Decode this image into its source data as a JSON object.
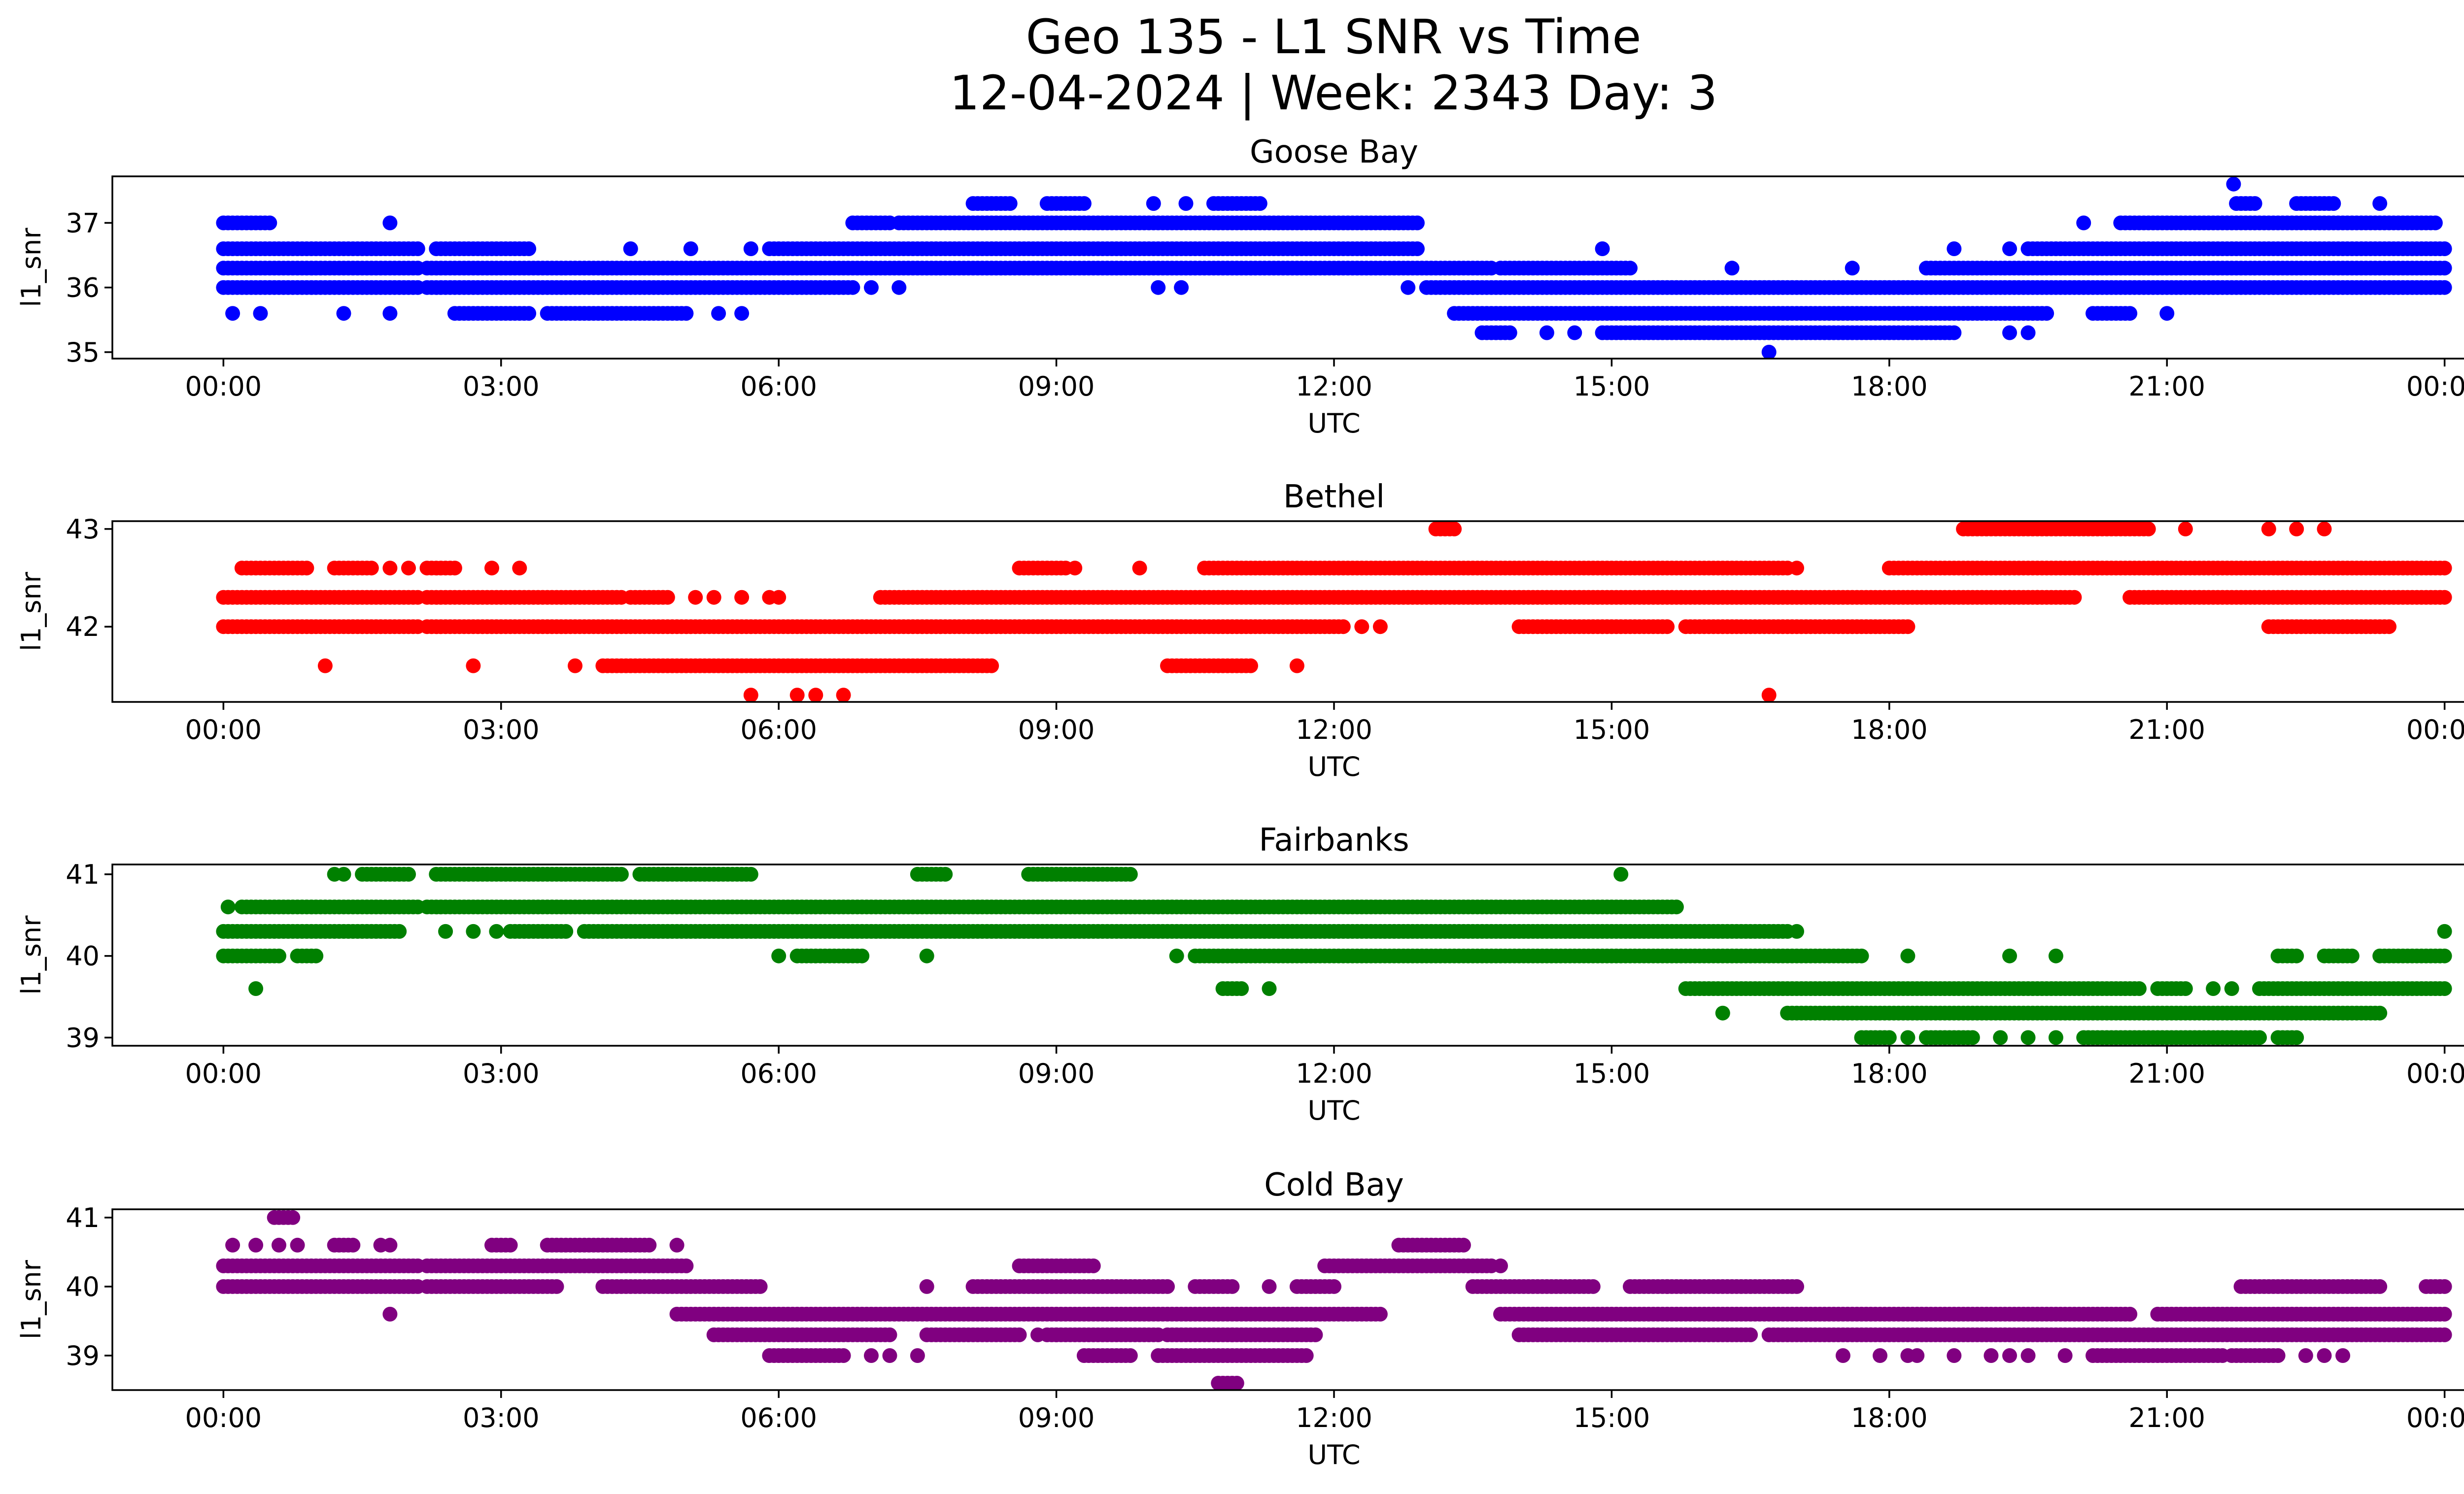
{
  "title_line1": "Geo 135 - L1 SNR vs Time",
  "title_line2": "12-04-2024 | Week: 2343 Day: 3",
  "chart_data": [
    {
      "type": "scatter",
      "title": "Goose Bay",
      "color": "#0000ff",
      "xlabel": "UTC",
      "ylabel": "l1_snr",
      "xlim_hours": [
        -1.2,
        25.2
      ],
      "ylim": [
        34.9,
        37.72
      ],
      "xticks": [
        "00:00",
        "03:00",
        "06:00",
        "09:00",
        "12:00",
        "15:00",
        "18:00",
        "21:00",
        "00:00"
      ],
      "yticks": [
        35,
        36,
        37
      ],
      "levels": [
        {
          "y": 37.6,
          "ranges": [],
          "points": [
            21.72
          ]
        },
        {
          "y": 37.3,
          "ranges": [
            [
              8.1,
              8.5
            ],
            [
              8.9,
              9.3
            ],
            [
              10.7,
              11.2
            ],
            [
              21.75,
              21.95
            ],
            [
              22.4,
              22.8
            ]
          ],
          "points": [
            10.05,
            10.4,
            23.3
          ]
        },
        {
          "y": 37.0,
          "ranges": [
            [
              0.0,
              0.5
            ],
            [
              6.8,
              7.2
            ],
            [
              7.3,
              12.9
            ],
            [
              20.5,
              23.9
            ]
          ],
          "points": [
            1.8,
            20.1
          ]
        },
        {
          "y": 36.6,
          "ranges": [
            [
              0.0,
              2.1
            ],
            [
              2.3,
              3.3
            ],
            [
              5.9,
              12.9
            ]
          ],
          "points": [
            4.4,
            5.05,
            5.7,
            14.9,
            18.7,
            19.3
          ]
        },
        {
          "y": 36.6,
          "ranges": [
            [
              19.5,
              24.0
            ]
          ],
          "points": []
        },
        {
          "y": 36.3,
          "ranges": [
            [
              0.0,
              2.1
            ],
            [
              2.2,
              13.7
            ],
            [
              13.8,
              15.2
            ]
          ],
          "points": [
            16.3,
            17.6
          ]
        },
        {
          "y": 36.3,
          "ranges": [
            [
              18.4,
              24.0
            ]
          ],
          "points": []
        },
        {
          "y": 36.0,
          "ranges": [
            [
              0.0,
              2.1
            ],
            [
              2.2,
              6.8
            ],
            [
              13.0,
              24.0
            ]
          ],
          "points": [
            7.0,
            7.3,
            10.1,
            10.35,
            12.8
          ]
        },
        {
          "y": 35.6,
          "ranges": [
            [
              2.5,
              3.3
            ],
            [
              3.5,
              5.0
            ],
            [
              13.3,
              19.7
            ],
            [
              20.2,
              20.6
            ]
          ],
          "points": [
            0.1,
            0.4,
            1.3,
            1.8,
            5.35,
            5.6,
            21.0
          ]
        },
        {
          "y": 35.3,
          "ranges": [
            [
              13.6,
              13.9
            ],
            [
              14.9,
              18.7
            ]
          ],
          "points": [
            14.3,
            14.6,
            19.3,
            19.5
          ]
        },
        {
          "y": 35.0,
          "ranges": [],
          "points": [
            16.7
          ]
        }
      ]
    },
    {
      "type": "scatter",
      "title": "Bethel",
      "color": "#ff0000",
      "xlabel": "UTC",
      "ylabel": "l1_snr",
      "xlim_hours": [
        -1.2,
        25.2
      ],
      "ylim": [
        41.23,
        43.08
      ],
      "xticks": [
        "00:00",
        "03:00",
        "06:00",
        "09:00",
        "12:00",
        "15:00",
        "18:00",
        "21:00",
        "00:00"
      ],
      "yticks": [
        42,
        43
      ],
      "levels": [
        {
          "y": 43.0,
          "ranges": [
            [
              13.1,
              13.3
            ],
            [
              18.8,
              20.8
            ]
          ],
          "points": [
            21.2,
            22.1,
            22.4,
            22.7
          ]
        },
        {
          "y": 42.6,
          "ranges": [
            [
              0.2,
              0.9
            ],
            [
              1.2,
              1.6
            ],
            [
              2.2,
              2.5
            ],
            [
              8.6,
              9.1
            ],
            [
              10.6,
              16.9
            ],
            [
              18.0,
              24.0
            ]
          ],
          "points": [
            1.8,
            2.0,
            2.9,
            3.2,
            9.2,
            9.9,
            17.0
          ]
        },
        {
          "y": 42.3,
          "ranges": [
            [
              0.0,
              2.1
            ],
            [
              2.2,
              4.3
            ],
            [
              4.4,
              4.8
            ],
            [
              7.1,
              20.0
            ],
            [
              20.6,
              24.0
            ]
          ],
          "points": [
            5.1,
            5.3,
            5.6,
            5.9,
            6.0,
            19.3,
            19.6
          ]
        },
        {
          "y": 42.0,
          "ranges": [
            [
              0.0,
              2.1
            ],
            [
              2.2,
              12.1
            ],
            [
              14.0,
              15.6
            ],
            [
              15.8,
              18.2
            ],
            [
              22.1,
              23.4
            ]
          ],
          "points": [
            12.3,
            12.5
          ]
        },
        {
          "y": 41.6,
          "ranges": [
            [
              4.1,
              8.3
            ],
            [
              10.2,
              11.1
            ]
          ],
          "points": [
            1.1,
            2.7,
            3.8,
            11.6
          ]
        },
        {
          "y": 41.3,
          "ranges": [],
          "points": [
            5.7,
            6.2,
            6.4,
            6.7,
            16.7
          ]
        }
      ]
    },
    {
      "type": "scatter",
      "title": "Fairbanks",
      "color": "#008000",
      "xlabel": "UTC",
      "ylabel": "l1_snr",
      "xlim_hours": [
        -1.2,
        25.2
      ],
      "ylim": [
        38.9,
        41.12
      ],
      "xticks": [
        "00:00",
        "03:00",
        "06:00",
        "09:00",
        "12:00",
        "15:00",
        "18:00",
        "21:00",
        "00:00"
      ],
      "yticks": [
        39,
        40,
        41
      ],
      "levels": [
        {
          "y": 41.0,
          "ranges": [
            [
              1.5,
              2.0
            ],
            [
              2.3,
              4.3
            ],
            [
              4.5,
              5.7
            ],
            [
              7.5,
              7.8
            ],
            [
              8.7,
              9.8
            ]
          ],
          "points": [
            1.2,
            1.3,
            15.1
          ]
        },
        {
          "y": 40.6,
          "ranges": [
            [
              0.2,
              2.1
            ],
            [
              2.2,
              15.7
            ]
          ],
          "points": [
            0.05
          ]
        },
        {
          "y": 40.3,
          "ranges": [
            [
              0.0,
              1.9
            ],
            [
              3.1,
              3.7
            ],
            [
              3.9,
              16.9
            ]
          ],
          "points": [
            2.4,
            2.7,
            2.95,
            17.0,
            24.0
          ]
        },
        {
          "y": 40.0,
          "ranges": [
            [
              0.0,
              0.6
            ],
            [
              0.8,
              1.0
            ],
            [
              6.2,
              6.9
            ],
            [
              10.5,
              17.7
            ],
            [
              22.2,
              22.4
            ],
            [
              22.7,
              23.0
            ],
            [
              23.3,
              24.0
            ]
          ],
          "points": [
            6.0,
            7.6,
            10.3,
            18.2,
            19.3,
            19.8
          ]
        },
        {
          "y": 39.6,
          "ranges": [
            [
              10.8,
              11.0
            ],
            [
              15.8,
              20.7
            ],
            [
              20.9,
              21.2
            ],
            [
              22.0,
              24.0
            ]
          ],
          "points": [
            0.35,
            11.3,
            21.5,
            21.7
          ]
        },
        {
          "y": 39.3,
          "ranges": [
            [
              16.9,
              23.3
            ]
          ],
          "points": [
            16.2
          ]
        },
        {
          "y": 39.0,
          "ranges": [
            [
              17.7,
              18.0
            ],
            [
              18.4,
              18.9
            ],
            [
              20.1,
              22.0
            ],
            [
              22.2,
              22.4
            ]
          ],
          "points": [
            18.2,
            19.2,
            19.5,
            19.8
          ]
        }
      ]
    },
    {
      "type": "scatter",
      "title": "Cold Bay",
      "color": "#800080",
      "xlabel": "UTC",
      "ylabel": "l1_snr",
      "xlim_hours": [
        -1.2,
        25.2
      ],
      "ylim": [
        38.5,
        41.12
      ],
      "xticks": [
        "00:00",
        "03:00",
        "06:00",
        "09:00",
        "12:00",
        "15:00",
        "18:00",
        "21:00",
        "00:00"
      ],
      "yticks": [
        39,
        40,
        41
      ],
      "levels": [
        {
          "y": 41.0,
          "ranges": [
            [
              0.55,
              0.75
            ]
          ],
          "points": []
        },
        {
          "y": 40.6,
          "ranges": [
            [
              1.2,
              1.4
            ],
            [
              2.9,
              3.1
            ],
            [
              3.5,
              4.6
            ],
            [
              12.7,
              13.4
            ]
          ],
          "points": [
            0.1,
            0.35,
            0.6,
            0.8,
            1.7,
            1.8,
            4.9
          ]
        },
        {
          "y": 40.3,
          "ranges": [
            [
              0.0,
              2.1
            ],
            [
              2.2,
              5.0
            ],
            [
              8.6,
              9.4
            ],
            [
              11.9,
              13.7
            ]
          ],
          "points": [
            13.8
          ]
        },
        {
          "y": 40.0,
          "ranges": [
            [
              0.0,
              2.1
            ],
            [
              2.2,
              3.6
            ],
            [
              4.1,
              5.8
            ],
            [
              8.1,
              10.2
            ],
            [
              10.5,
              10.9
            ],
            [
              11.6,
              12.0
            ],
            [
              13.5,
              14.8
            ],
            [
              15.2,
              17.0
            ],
            [
              21.8,
              23.3
            ],
            [
              23.8,
              24.0
            ]
          ],
          "points": [
            7.6,
            11.3,
            15.6
          ]
        },
        {
          "y": 39.6,
          "ranges": [
            [
              4.9,
              12.5
            ],
            [
              13.8,
              20.6
            ],
            [
              20.9,
              24.0
            ]
          ],
          "points": [
            1.8
          ]
        },
        {
          "y": 39.3,
          "ranges": [
            [
              5.3,
              7.2
            ],
            [
              7.6,
              8.6
            ],
            [
              8.9,
              10.1
            ],
            [
              10.2,
              11.8
            ],
            [
              14.0,
              16.5
            ],
            [
              16.7,
              24.0
            ]
          ],
          "points": [
            8.8,
            9.0,
            10.9
          ]
        },
        {
          "y": 39.0,
          "ranges": [
            [
              5.9,
              6.7
            ],
            [
              9.3,
              9.8
            ],
            [
              10.1,
              11.7
            ],
            [
              20.2,
              21.6
            ],
            [
              21.7,
              22.2
            ]
          ],
          "points": [
            7.0,
            7.2,
            7.5,
            17.5,
            17.9,
            18.2,
            18.3,
            18.7,
            19.1,
            19.3,
            19.5,
            19.9,
            22.5,
            22.7,
            22.9
          ]
        },
        {
          "y": 38.6,
          "ranges": [
            [
              10.75,
              10.95
            ]
          ],
          "points": []
        }
      ]
    }
  ]
}
